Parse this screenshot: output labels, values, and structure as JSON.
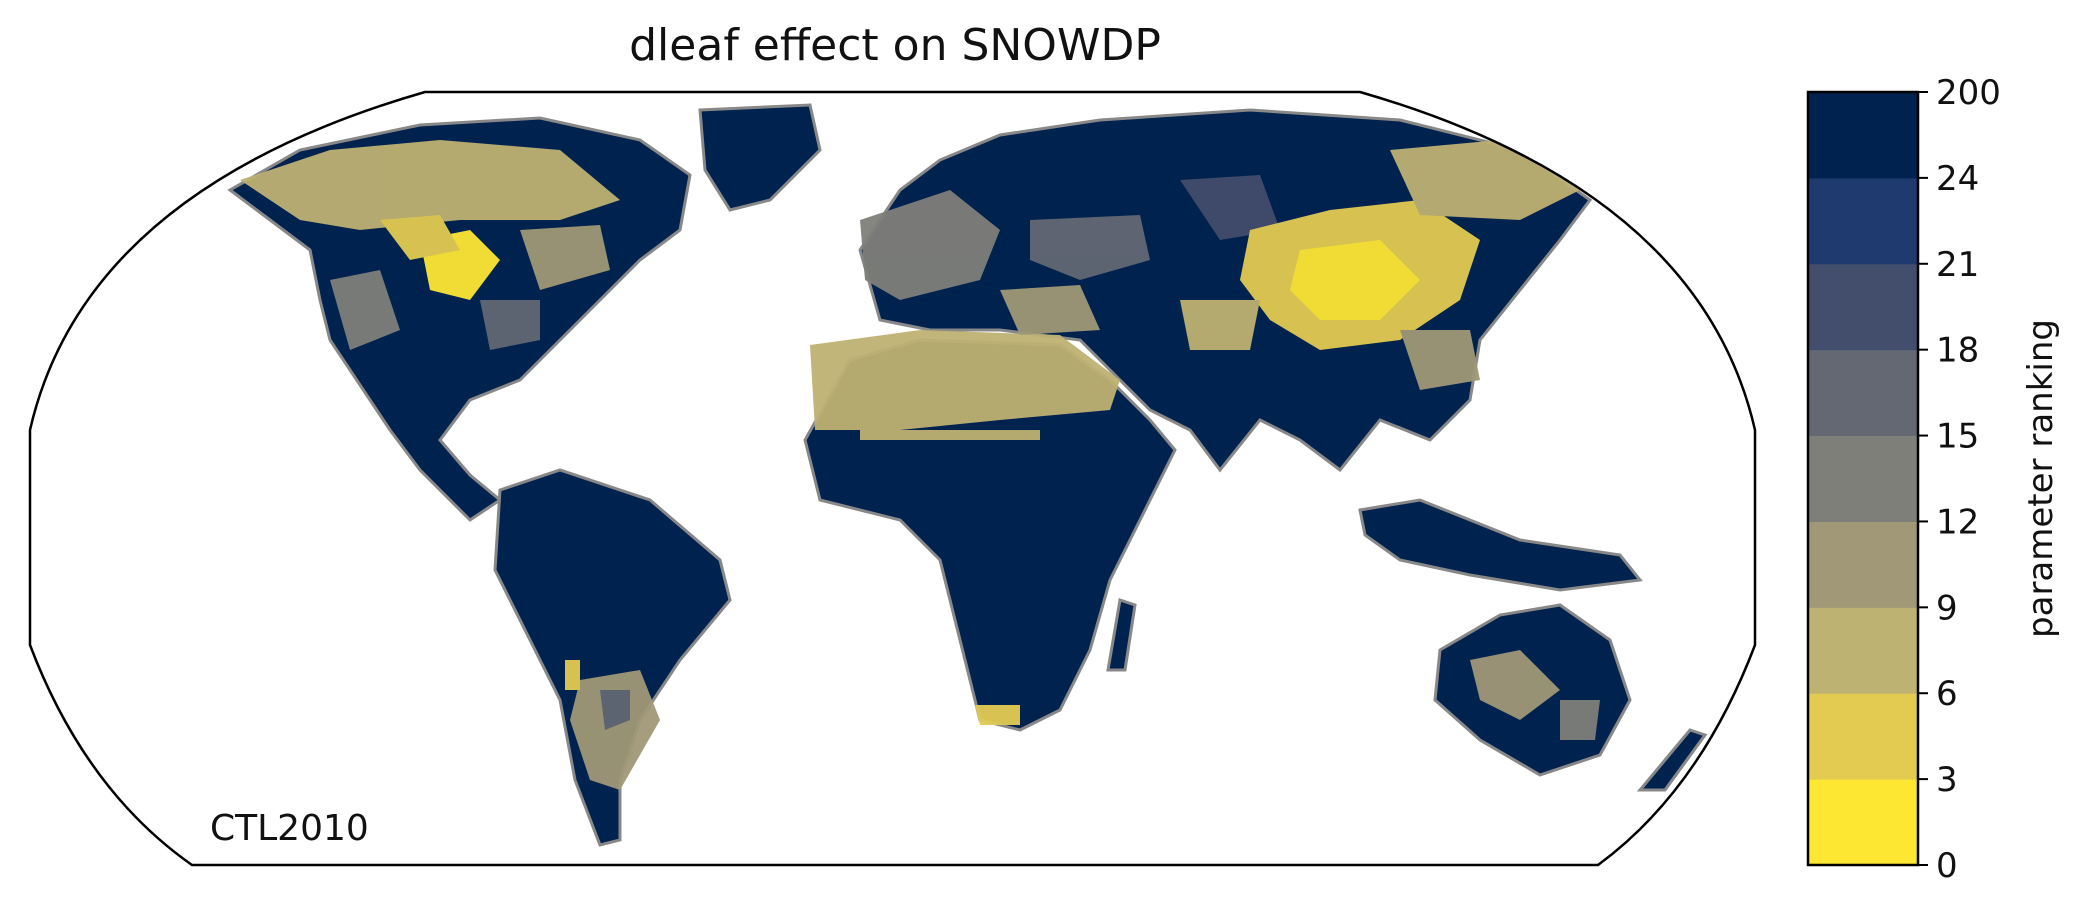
{
  "title": "dleaf effect on SNOWDP",
  "annotation": "CTL2010",
  "colorbar": {
    "label": "parameter ranking",
    "ticks": [
      "0",
      "3",
      "6",
      "9",
      "12",
      "15",
      "18",
      "21",
      "24",
      "200"
    ],
    "colors": [
      "#fde733",
      "#e3cb52",
      "#beb272",
      "#a09877",
      "#7f7f7a",
      "#636873",
      "#434d6c",
      "#1e3a6e",
      "#00224e"
    ]
  },
  "map": {
    "projection": "robinson-like",
    "coastline_color": "#888888",
    "land_default_color": "#00224e",
    "border_color": "#000000"
  }
}
